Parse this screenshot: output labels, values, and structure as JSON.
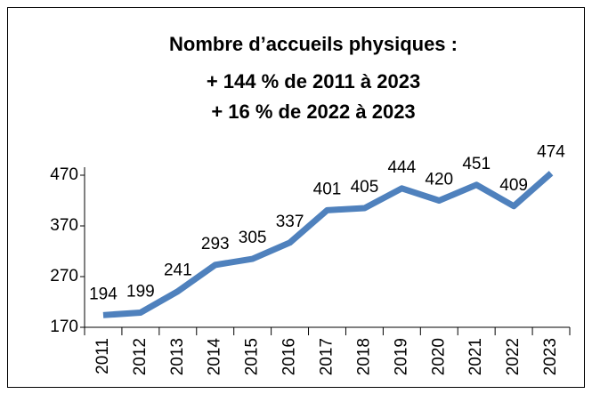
{
  "chart_data": {
    "type": "line",
    "title": [
      "Nombre d’accueils physiques :",
      "+ 144 % de 2011 à 2023",
      "+ 16 % de 2022 à 2023"
    ],
    "categories": [
      "2011",
      "2012",
      "2013",
      "2014",
      "2015",
      "2016",
      "2017",
      "2018",
      "2019",
      "2020",
      "2021",
      "2022",
      "2023"
    ],
    "series": [
      {
        "name": "Accueils physiques",
        "color": "#4f81bd",
        "values": [
          194,
          199,
          241,
          293,
          305,
          337,
          401,
          405,
          444,
          420,
          451,
          409,
          474
        ]
      }
    ],
    "ylim": [
      170,
      470
    ],
    "yticks": [
      170,
      270,
      370,
      470
    ],
    "grid": false,
    "data_labels": true,
    "legend": false
  }
}
